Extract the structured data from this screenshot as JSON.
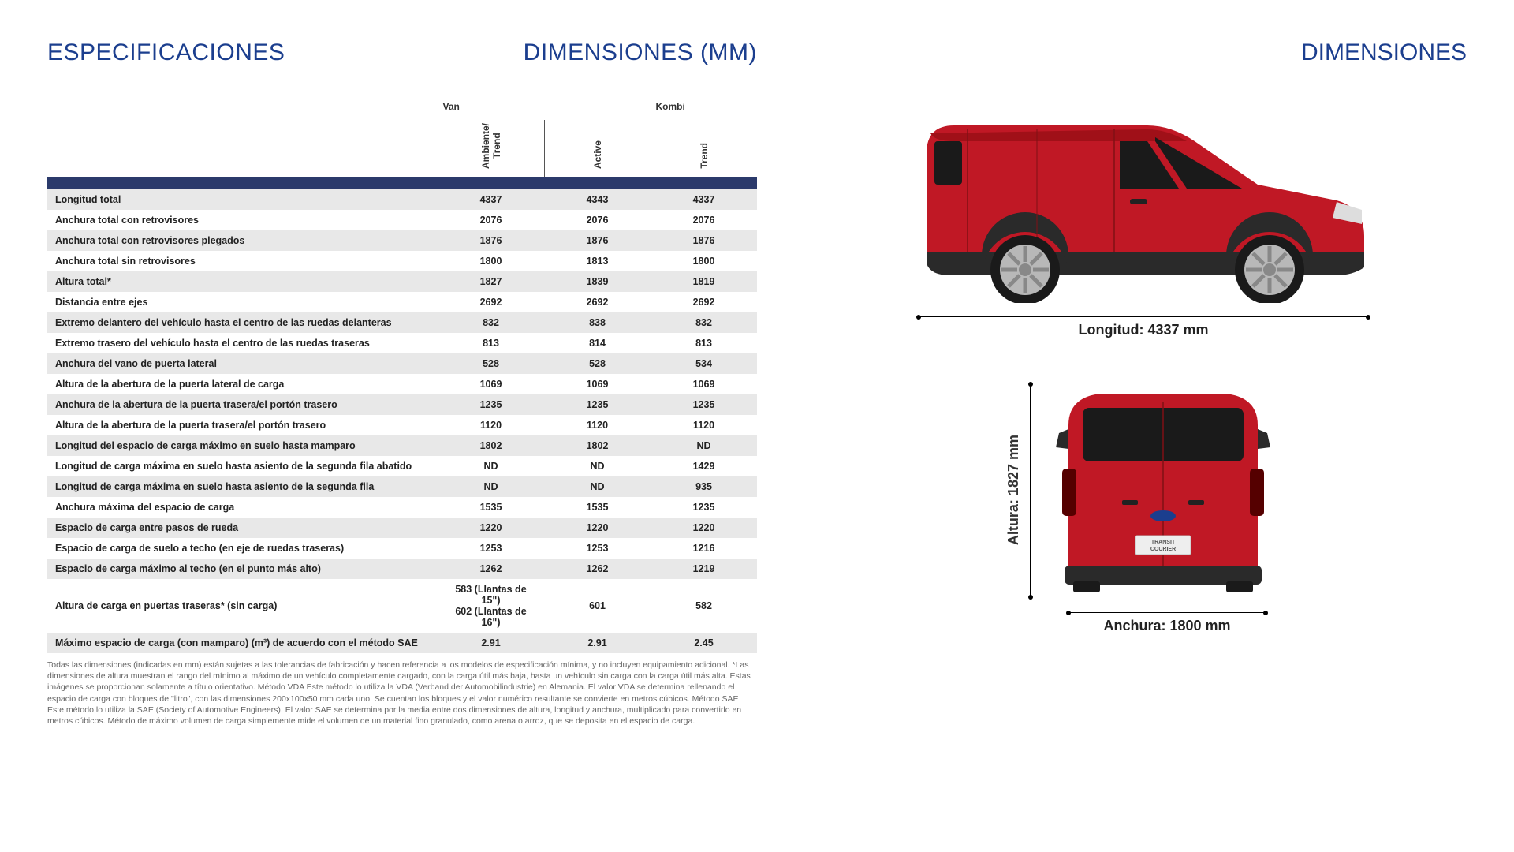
{
  "titles": {
    "especificaciones": "ESPECIFICACIONES",
    "dimensiones_mm": "DIMENSIONES (MM)",
    "dimensiones": "DIMENSIONES"
  },
  "table": {
    "group_van": "Van",
    "group_kombi": "Kombi",
    "col_ambiente_trend": "Ambiente/\nTrend",
    "col_active": "Active",
    "col_trend": "Trend",
    "rows": [
      {
        "label": "Longitud total",
        "v1": "4337",
        "v2": "4343",
        "v3": "4337"
      },
      {
        "label": "Anchura total con retrovisores",
        "v1": "2076",
        "v2": "2076",
        "v3": "2076"
      },
      {
        "label": "Anchura total con retrovisores plegados",
        "v1": "1876",
        "v2": "1876",
        "v3": "1876"
      },
      {
        "label": "Anchura total sin retrovisores",
        "v1": "1800",
        "v2": "1813",
        "v3": "1800"
      },
      {
        "label": "Altura total*",
        "v1": "1827",
        "v2": "1839",
        "v3": "1819"
      },
      {
        "label": "Distancia entre ejes",
        "v1": "2692",
        "v2": "2692",
        "v3": "2692"
      },
      {
        "label": "Extremo delantero del vehículo hasta el centro de las ruedas delanteras",
        "v1": "832",
        "v2": "838",
        "v3": "832"
      },
      {
        "label": "Extremo trasero del vehículo hasta el centro de las ruedas traseras",
        "v1": "813",
        "v2": "814",
        "v3": "813"
      },
      {
        "label": "Anchura del vano de puerta lateral",
        "v1": "528",
        "v2": "528",
        "v3": "534"
      },
      {
        "label": "Altura de la abertura de la puerta lateral de carga",
        "v1": "1069",
        "v2": "1069",
        "v3": "1069"
      },
      {
        "label": "Anchura de la abertura de la puerta trasera/el portón trasero",
        "v1": "1235",
        "v2": "1235",
        "v3": "1235"
      },
      {
        "label": "Altura de la abertura de la puerta trasera/el portón trasero",
        "v1": "1120",
        "v2": "1120",
        "v3": "1120"
      },
      {
        "label": "Longitud del espacio de carga máximo en suelo hasta mamparo",
        "v1": "1802",
        "v2": "1802",
        "v3": "ND"
      },
      {
        "label": "Longitud de carga máxima en suelo hasta asiento de la segunda fila abatido",
        "v1": "ND",
        "v2": "ND",
        "v3": "1429"
      },
      {
        "label": "Longitud de carga máxima en suelo hasta asiento de la segunda fila",
        "v1": "ND",
        "v2": "ND",
        "v3": "935"
      },
      {
        "label": "Anchura máxima del espacio de carga",
        "v1": "1535",
        "v2": "1535",
        "v3": "1235"
      },
      {
        "label": "Espacio de carga entre pasos de rueda",
        "v1": "1220",
        "v2": "1220",
        "v3": "1220"
      },
      {
        "label": "Espacio de carga de suelo a techo (en eje de ruedas traseras)",
        "v1": "1253",
        "v2": "1253",
        "v3": "1216"
      },
      {
        "label": "Espacio de carga máximo al techo (en el punto más alto)",
        "v1": "1262",
        "v2": "1262",
        "v3": "1219"
      },
      {
        "label": "Altura de carga en puertas traseras* (sin carga)",
        "v1": "583 (Llantas de 15\")\n602 (Llantas de 16\")",
        "v2": "601",
        "v3": "582"
      },
      {
        "label": "Máximo espacio de carga (con mamparo) (m³) de acuerdo con el método SAE",
        "v1": "2.91",
        "v2": "2.91",
        "v3": "2.45"
      }
    ]
  },
  "footnote": "Todas las dimensiones (indicadas en mm) están sujetas a las tolerancias de fabricación y hacen referencia a los modelos de especificación mínima, y no incluyen equipamiento adicional. *Las dimensiones de altura muestran el rango del mínimo al máximo de un vehículo completamente cargado, con la carga útil más baja, hasta un vehículo sin carga con la carga útil más alta. Estas imágenes se proporcionan solamente a título orientativo. Método VDA Este método lo utiliza la VDA (Verband der Automobilindustrie) en Alemania. El valor VDA se determina rellenando el espacio de carga con bloques de \"litro\", con las dimensiones 200x100x50 mm cada uno. Se cuentan los bloques y el valor numérico resultante se convierte en metros cúbicos. Método SAE Este método lo utiliza la SAE (Society of Automotive Engineers). El valor SAE se determina por la media entre dos dimensiones de altura, longitud y anchura, multiplicado para convertirlo en metros cúbicos. Método de máximo volumen de carga simplemente mide el volumen de un material fino granulado, como arena o arroz, que se deposita en el espacio de carga.",
  "diagrams": {
    "longitud_label": "Longitud: 4337 mm",
    "altura_label": "Altura: 1827 mm",
    "anchura_label": "Anchura: 1800 mm",
    "vehicle_color": "#c01825",
    "vehicle_dark": "#2a2a2a",
    "wheel_color": "#b8b8b8",
    "badge_text": "TRANSIT\nCOURIER"
  }
}
